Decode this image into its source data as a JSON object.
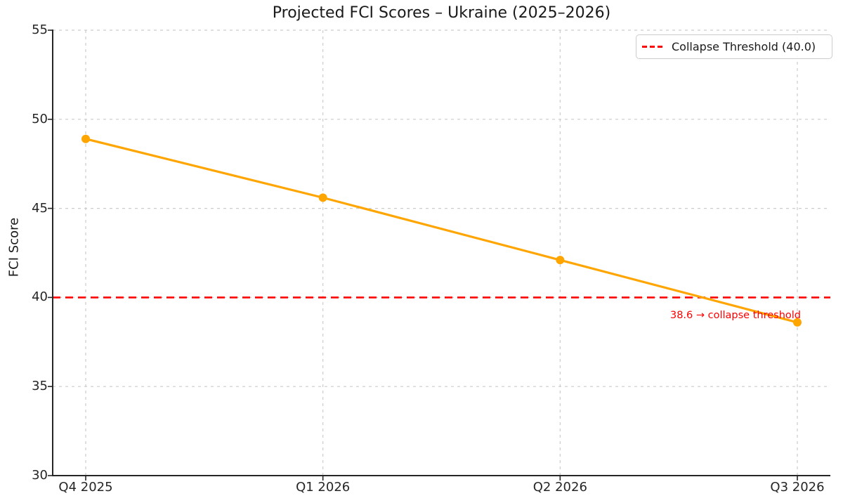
{
  "figure": {
    "background": "#ffffff"
  },
  "chart_data": {
    "type": "line",
    "title": "Projected FCI Scores – Ukraine (2025–2026)",
    "xlabel": "",
    "ylabel": "FCI Score",
    "categories": [
      "Q4 2025",
      "Q1 2026",
      "Q2 2026",
      "Q3 2026"
    ],
    "series": [
      {
        "name": "FCI Score",
        "values": [
          48.9,
          45.6,
          42.1,
          38.6
        ],
        "color": "#FFA500",
        "marker": "circle"
      }
    ],
    "ylim": [
      30,
      55
    ],
    "yticks": [
      30,
      35,
      40,
      45,
      50,
      55
    ],
    "grid": true,
    "grid_style": "dashed",
    "legend_position": "upper right",
    "threshold": {
      "value": 40.0,
      "label": "Collapse Threshold (40.0)",
      "color": "#ff0000",
      "style": "dashed"
    },
    "annotation": {
      "text": "38.6 → collapse threshold",
      "color": "#ff0000"
    }
  },
  "colors": {
    "gridline": "#cccccc",
    "spine": "#262626",
    "tick_text": "#262626",
    "title_text": "#1a1a1a"
  }
}
